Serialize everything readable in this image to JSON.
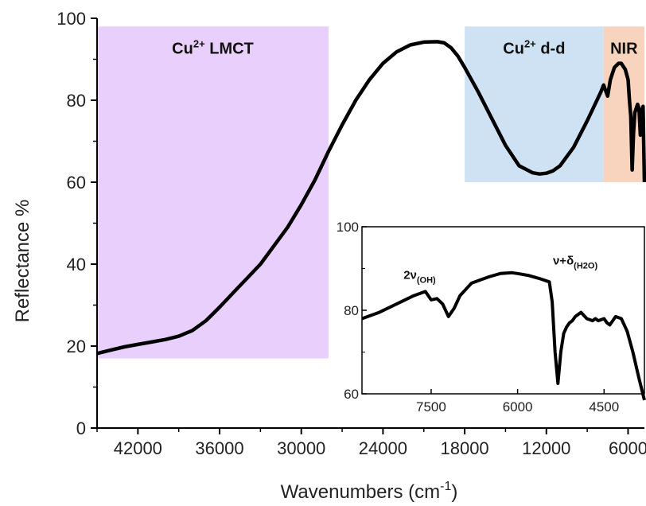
{
  "chart_data": [
    {
      "type": "line",
      "xlabel_base": "Wavenumbers (cm",
      "xlabel_sup": "-1",
      "xlabel_close": ")",
      "ylabel": "Reflectance %",
      "xlim": [
        45000,
        4800
      ],
      "ylim": [
        0,
        100
      ],
      "xticks": [
        42000,
        36000,
        30000,
        24000,
        18000,
        12000,
        6000
      ],
      "yticks": [
        0,
        20,
        40,
        60,
        80,
        100
      ],
      "regions": [
        {
          "base": "Cu",
          "sup": "2+",
          "rest": " LMCT",
          "x_from": 45000,
          "x_to": 28000,
          "y_from": 17,
          "y_to": 98,
          "color": "#e9cffb"
        },
        {
          "base": "Cu",
          "sup": "2+",
          "rest": " d-d",
          "x_from": 18000,
          "x_to": 7800,
          "y_from": 60,
          "y_to": 98,
          "color": "#cfe2f3"
        },
        {
          "base": "NIR",
          "sup": "",
          "rest": "",
          "x_from": 7800,
          "x_to": 4800,
          "y_from": 60,
          "y_to": 98,
          "color": "#f8d3bd"
        }
      ],
      "series": [
        {
          "color": "#000000",
          "x": [
            45000,
            44000,
            43000,
            42000,
            41000,
            40000,
            39000,
            38000,
            37000,
            36000,
            35000,
            34000,
            33000,
            32000,
            31000,
            30000,
            29000,
            28000,
            27000,
            26000,
            25000,
            24000,
            23000,
            22000,
            21000,
            20000,
            19500,
            19000,
            18500,
            18000,
            17000,
            16000,
            15000,
            14000,
            13000,
            12500,
            12000,
            11500,
            11000,
            10000,
            9000,
            8500,
            8000,
            7800,
            7500,
            7300,
            7200,
            7000,
            6700,
            6500,
            6200,
            6000,
            5900,
            5800,
            5700,
            5600,
            5500,
            5300,
            5200,
            5100,
            5000,
            4900,
            4800
          ],
          "y": [
            18.2,
            19.0,
            19.8,
            20.4,
            21.0,
            21.6,
            22.4,
            23.8,
            26.2,
            29.5,
            33.0,
            36.5,
            40.0,
            44.5,
            49.0,
            54.5,
            60.5,
            67.5,
            74.0,
            80.0,
            85.0,
            89.0,
            91.8,
            93.5,
            94.2,
            94.3,
            94.0,
            92.8,
            90.8,
            88.0,
            82.0,
            75.5,
            69.0,
            64.0,
            62.3,
            62.0,
            62.2,
            62.8,
            64.0,
            68.5,
            75.0,
            78.5,
            82.0,
            83.7,
            81.0,
            85.0,
            86.0,
            88.0,
            89.0,
            89.0,
            87.5,
            85.0,
            80.0,
            76.0,
            63.0,
            72.0,
            77.0,
            79.0,
            78.0,
            71.5,
            77.0,
            78.5,
            60.0
          ]
        }
      ]
    },
    {
      "type": "line",
      "inset": true,
      "xlim": [
        8700,
        3800
      ],
      "ylim": [
        60,
        100
      ],
      "xticks": [
        7500,
        6000,
        4500
      ],
      "yticks": [
        60,
        80,
        100
      ],
      "annotations": [
        {
          "base": "2ν",
          "sub": "(OH)",
          "x": 7700,
          "y": 87.5
        },
        {
          "base": "ν+δ",
          "sub": "(H2O)",
          "x": 5000,
          "y": 91
        }
      ],
      "series": [
        {
          "color": "#000000",
          "x": [
            8700,
            8400,
            8100,
            7800,
            7600,
            7500,
            7400,
            7300,
            7200,
            7100,
            7000,
            6900,
            6800,
            6700,
            6600,
            6500,
            6300,
            6100,
            6000,
            5800,
            5600,
            5450,
            5400,
            5350,
            5300,
            5250,
            5200,
            5150,
            5100,
            5050,
            5000,
            4900,
            4800,
            4700,
            4650,
            4600,
            4500,
            4450,
            4400,
            4350,
            4300,
            4200,
            4100,
            4000,
            3900,
            3800
          ],
          "y": [
            78.0,
            79.5,
            81.5,
            83.5,
            84.5,
            82.5,
            82.8,
            81.5,
            78.5,
            80.5,
            83.5,
            85.0,
            86.5,
            87.0,
            87.5,
            88.0,
            88.8,
            89.0,
            88.8,
            88.3,
            87.5,
            86.8,
            82.0,
            70.0,
            62.5,
            70.0,
            74.5,
            76.0,
            77.0,
            77.5,
            78.5,
            79.5,
            78.0,
            77.5,
            78.0,
            77.5,
            78.0,
            77.0,
            76.5,
            77.5,
            78.5,
            78.0,
            75.0,
            70.0,
            64.0,
            58.5
          ]
        }
      ]
    }
  ]
}
